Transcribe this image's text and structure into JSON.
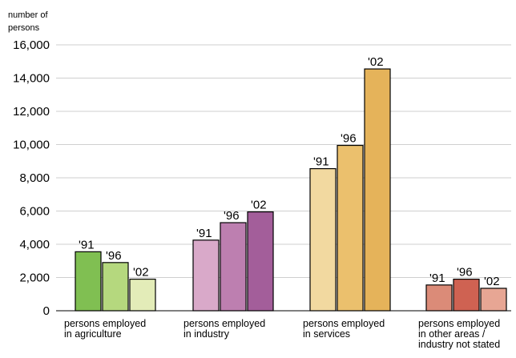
{
  "chart_data": {
    "type": "bar",
    "ylabel_lines": [
      "number of",
      "persons"
    ],
    "ylim": [
      0,
      16000
    ],
    "yticks": [
      0,
      2000,
      4000,
      6000,
      8000,
      10000,
      12000,
      14000,
      16000
    ],
    "ytick_labels": [
      "0",
      "2,000",
      "4,000",
      "6,000",
      "8,000",
      "10,000",
      "12,000",
      "14,000",
      "16,000"
    ],
    "grid": true,
    "categories": [
      {
        "label_lines": [
          "persons employed",
          "in agriculture"
        ]
      },
      {
        "label_lines": [
          "persons employed",
          "in industry"
        ]
      },
      {
        "label_lines": [
          "persons employed",
          "in services"
        ]
      },
      {
        "label_lines": [
          "persons employed",
          "in other areas /",
          "industry not stated"
        ]
      }
    ],
    "series": [
      {
        "name": "'91",
        "values": [
          3550,
          4250,
          8550,
          1550
        ]
      },
      {
        "name": "'96",
        "values": [
          2900,
          5300,
          9950,
          1900
        ]
      },
      {
        "name": "'02",
        "values": [
          1900,
          5950,
          14550,
          1350
        ]
      }
    ],
    "colors": [
      [
        "#80bf52",
        "#b5d87e",
        "#e3ecb8"
      ],
      [
        "#d9a9c9",
        "#bd7fb0",
        "#a35e9a"
      ],
      [
        "#f2d9a0",
        "#ebc06d",
        "#e5b35a"
      ],
      [
        "#db8b78",
        "#cf6252",
        "#e7a694"
      ]
    ]
  }
}
